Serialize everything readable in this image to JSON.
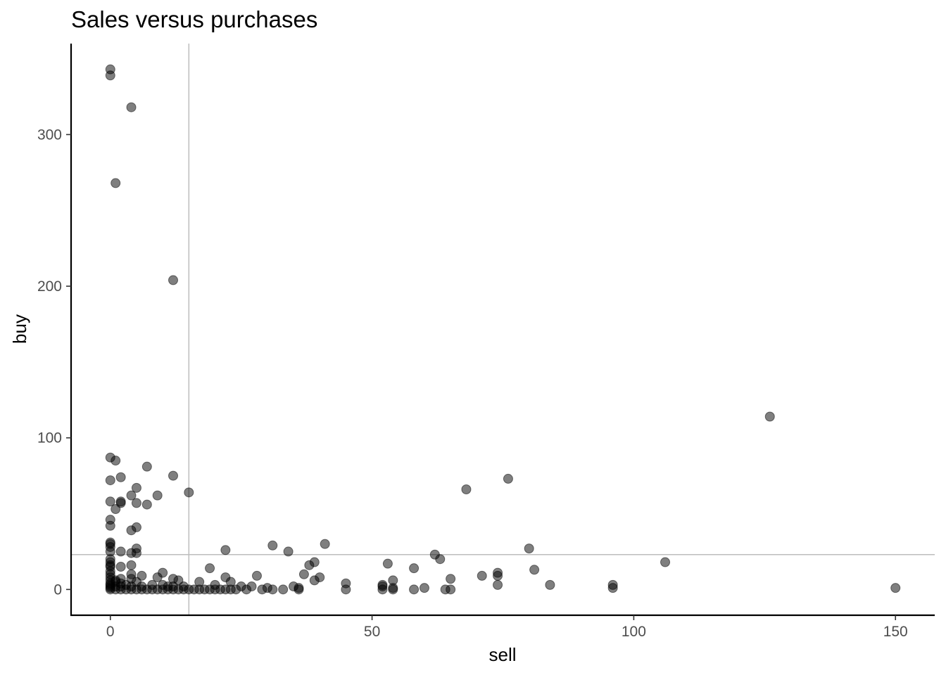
{
  "chart_data": {
    "type": "scatter",
    "title": "Sales versus purchases",
    "xlabel": "sell",
    "ylabel": "buy",
    "xlim": [
      -7.5,
      157.5
    ],
    "ylim": [
      -17,
      360
    ],
    "x_ticks": [
      0,
      50,
      100,
      150
    ],
    "y_ticks": [
      0,
      100,
      200,
      300
    ],
    "grid": false,
    "reference_lines": {
      "vline_x": 15,
      "hline_y": 23
    },
    "point_color": "#000000",
    "point_alpha": 0.5,
    "ref_line_color": "#bdbdbd",
    "points": [
      [
        0,
        343
      ],
      [
        0,
        339
      ],
      [
        4,
        318
      ],
      [
        1,
        268
      ],
      [
        12,
        204
      ],
      [
        126,
        114
      ],
      [
        0,
        87
      ],
      [
        1,
        85
      ],
      [
        7,
        81
      ],
      [
        12,
        75
      ],
      [
        2,
        74
      ],
      [
        76,
        73
      ],
      [
        0,
        72
      ],
      [
        68,
        66
      ],
      [
        5,
        67
      ],
      [
        15,
        64
      ],
      [
        4,
        62
      ],
      [
        9,
        62
      ],
      [
        0,
        58
      ],
      [
        2,
        58
      ],
      [
        2,
        57
      ],
      [
        5,
        57
      ],
      [
        7,
        56
      ],
      [
        1,
        53
      ],
      [
        0,
        46
      ],
      [
        0,
        42
      ],
      [
        5,
        41
      ],
      [
        4,
        39
      ],
      [
        0,
        31
      ],
      [
        0,
        30
      ],
      [
        41,
        30
      ],
      [
        31,
        29
      ],
      [
        0,
        28
      ],
      [
        5,
        27
      ],
      [
        80,
        27
      ],
      [
        22,
        26
      ],
      [
        0,
        25
      ],
      [
        2,
        25
      ],
      [
        4,
        24
      ],
      [
        5,
        24
      ],
      [
        34,
        25
      ],
      [
        62,
        23
      ],
      [
        63,
        20
      ],
      [
        0,
        20
      ],
      [
        0,
        18
      ],
      [
        39,
        18
      ],
      [
        106,
        18
      ],
      [
        53,
        17
      ],
      [
        0,
        16
      ],
      [
        4,
        16
      ],
      [
        38,
        16
      ],
      [
        0,
        15
      ],
      [
        2,
        15
      ],
      [
        19,
        14
      ],
      [
        58,
        14
      ],
      [
        81,
        13
      ],
      [
        10,
        11
      ],
      [
        74,
        11
      ],
      [
        37,
        10
      ],
      [
        0,
        10
      ],
      [
        4,
        10
      ],
      [
        0,
        12
      ],
      [
        71,
        9
      ],
      [
        74,
        9
      ],
      [
        28,
        9
      ],
      [
        6,
        9
      ],
      [
        40,
        8
      ],
      [
        9,
        8
      ],
      [
        22,
        8
      ],
      [
        0,
        8
      ],
      [
        2,
        7
      ],
      [
        4,
        7
      ],
      [
        12,
        7
      ],
      [
        65,
        7
      ],
      [
        0,
        6
      ],
      [
        1,
        6
      ],
      [
        13,
        6
      ],
      [
        23,
        5
      ],
      [
        17,
        5
      ],
      [
        54,
        6
      ],
      [
        39,
        6
      ],
      [
        1,
        5
      ],
      [
        5,
        5
      ],
      [
        0,
        4
      ],
      [
        2,
        4
      ],
      [
        45,
        4
      ],
      [
        52,
        3
      ],
      [
        74,
        3
      ],
      [
        84,
        3
      ],
      [
        96,
        3
      ],
      [
        0,
        3
      ],
      [
        3,
        3
      ],
      [
        8,
        3
      ],
      [
        10,
        3
      ],
      [
        20,
        3
      ],
      [
        35,
        2
      ],
      [
        52,
        2
      ],
      [
        0,
        2
      ],
      [
        1,
        2
      ],
      [
        2,
        2
      ],
      [
        4,
        2
      ],
      [
        6,
        2
      ],
      [
        11,
        2
      ],
      [
        12,
        2
      ],
      [
        14,
        2
      ],
      [
        25,
        2
      ],
      [
        27,
        2
      ],
      [
        30,
        1
      ],
      [
        36,
        1
      ],
      [
        54,
        1
      ],
      [
        60,
        1
      ],
      [
        96,
        1
      ],
      [
        150,
        1
      ],
      [
        0,
        1
      ],
      [
        0,
        0
      ],
      [
        1,
        0
      ],
      [
        2,
        0
      ],
      [
        3,
        0
      ],
      [
        4,
        0
      ],
      [
        5,
        0
      ],
      [
        6,
        0
      ],
      [
        7,
        0
      ],
      [
        8,
        0
      ],
      [
        9,
        0
      ],
      [
        10,
        0
      ],
      [
        11,
        0
      ],
      [
        12,
        0
      ],
      [
        13,
        0
      ],
      [
        14,
        0
      ],
      [
        15,
        0
      ],
      [
        16,
        0
      ],
      [
        17,
        0
      ],
      [
        18,
        0
      ],
      [
        19,
        0
      ],
      [
        20,
        0
      ],
      [
        21,
        0
      ],
      [
        22,
        0
      ],
      [
        23,
        0
      ],
      [
        24,
        0
      ],
      [
        26,
        0
      ],
      [
        29,
        0
      ],
      [
        31,
        0
      ],
      [
        33,
        0
      ],
      [
        36,
        0
      ],
      [
        45,
        0
      ],
      [
        52,
        0
      ],
      [
        54,
        0
      ],
      [
        58,
        0
      ],
      [
        64,
        0
      ],
      [
        65,
        0
      ]
    ]
  }
}
